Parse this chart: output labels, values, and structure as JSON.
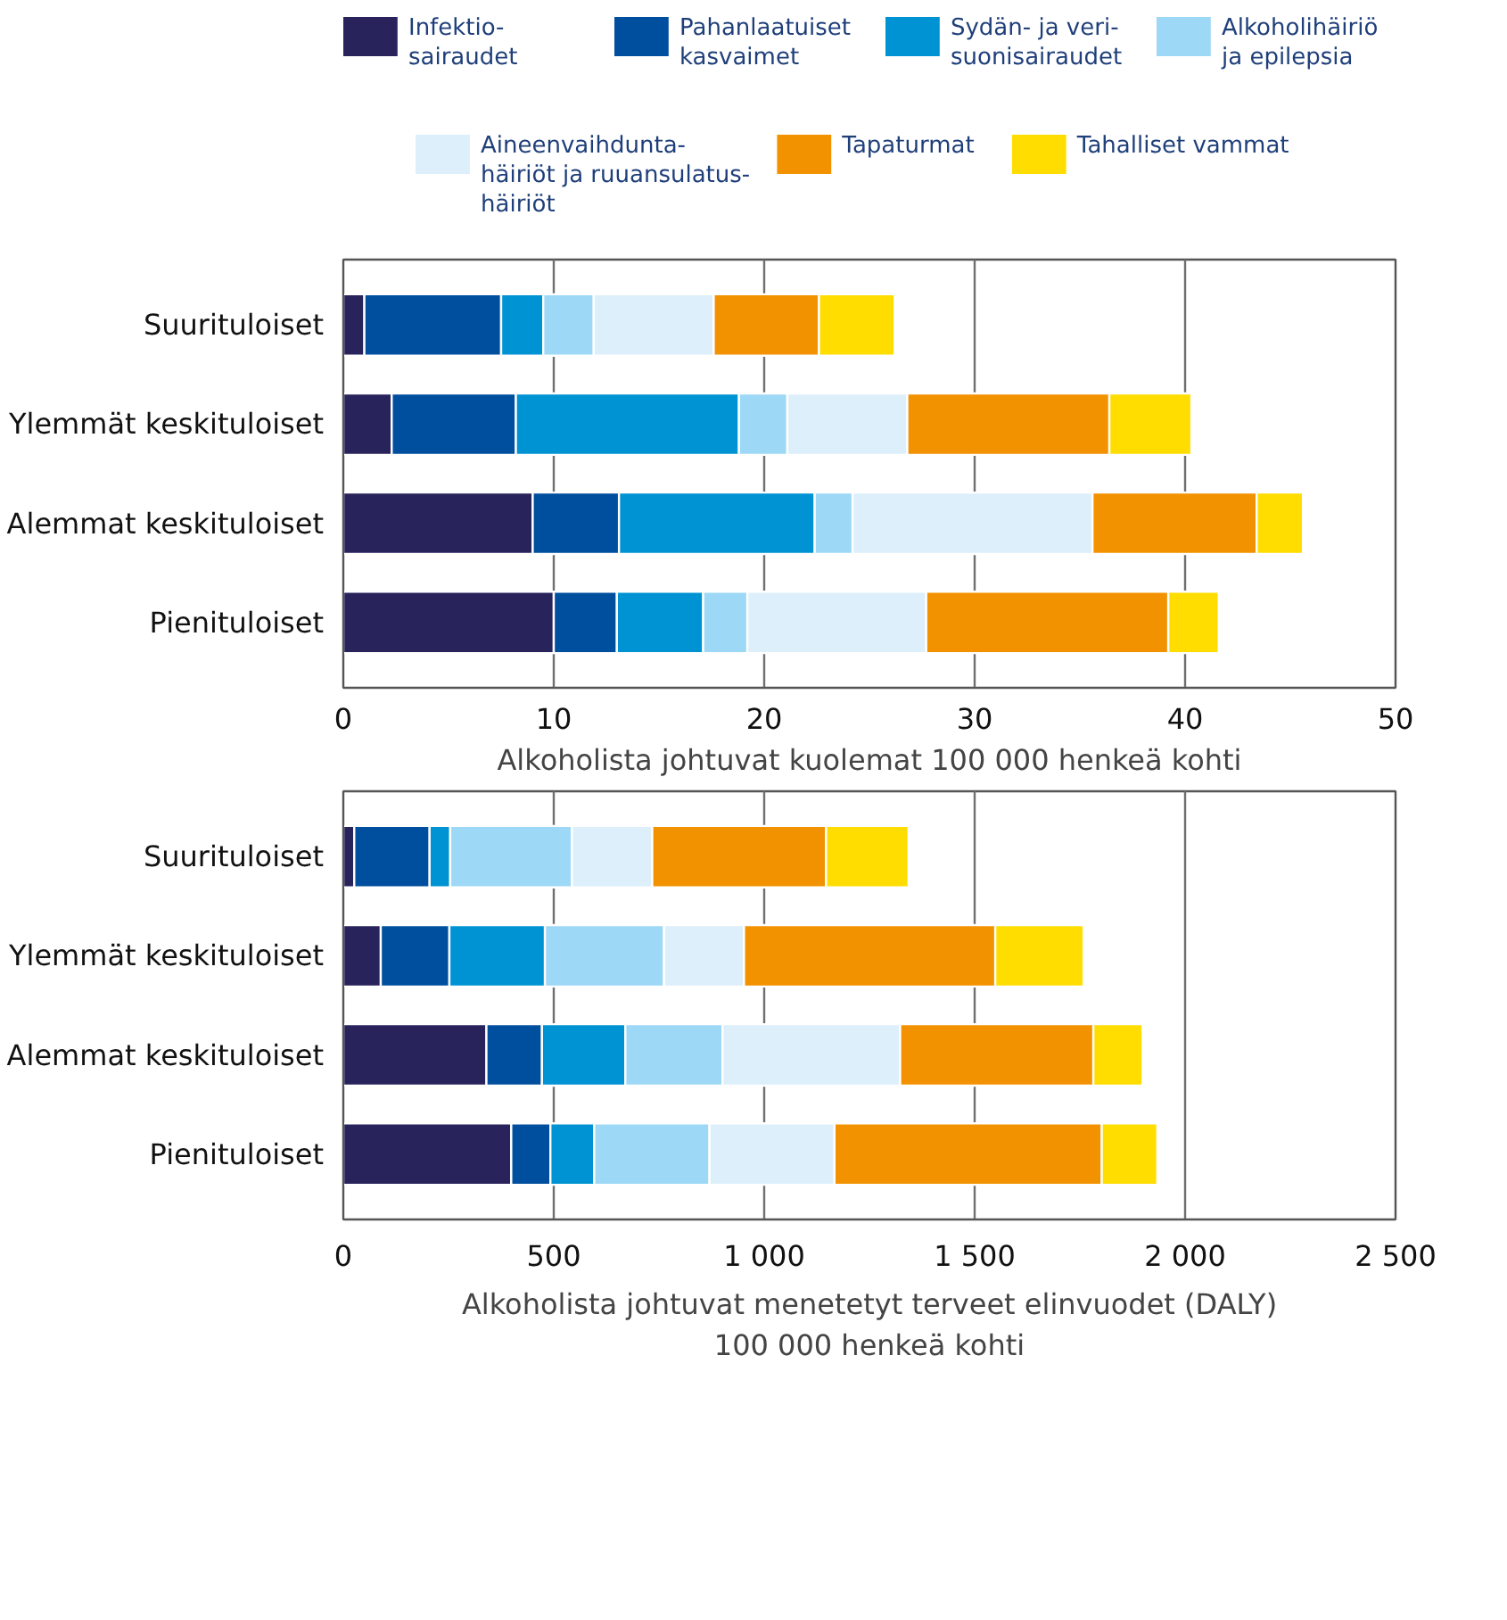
{
  "chart_data": [
    {
      "type": "bar",
      "orientation": "horizontal",
      "stacked": true,
      "xlabel": "Alkoholista johtuvat kuolemat 100 000 henkeä kohti",
      "categories": [
        "Suurituloiset",
        "Ylemmät keskituloiset",
        "Alemmat keskituloiset",
        "Pienituloiset"
      ],
      "xlim": [
        0,
        50
      ],
      "xticks": [
        0,
        10,
        20,
        30,
        40,
        50
      ],
      "grid": "x",
      "legend": "top",
      "series": [
        {
          "name": "Infektio-\nsairaudet",
          "color": "#29235c",
          "values": [
            1.0,
            2.3,
            9.0,
            10.0
          ]
        },
        {
          "name": "Pahanlaatuiset\nkasvaimet",
          "color": "#004f9f",
          "values": [
            6.5,
            5.9,
            4.1,
            3.0
          ]
        },
        {
          "name": "Sydän- ja veri-\nsuonisairaudet",
          "color": "#0093d3",
          "values": [
            2.0,
            10.6,
            9.3,
            4.1
          ]
        },
        {
          "name": "Alkoholihäiriö\nja epilepsia",
          "color": "#9dd8f7",
          "values": [
            2.4,
            2.3,
            1.8,
            2.1
          ]
        },
        {
          "name": "Aineenvaihdunta-\nhäiriöt ja ruuansulatus-\nhäiriöt",
          "color": "#ddeffa",
          "values": [
            5.7,
            5.7,
            11.4,
            8.5
          ]
        },
        {
          "name": "Tapaturmat",
          "color": "#f39200",
          "values": [
            5.0,
            9.6,
            7.8,
            11.5
          ]
        },
        {
          "name": "Tahalliset vammat",
          "color": "#ffdd00",
          "values": [
            3.6,
            3.9,
            2.2,
            2.4
          ]
        }
      ]
    },
    {
      "type": "bar",
      "orientation": "horizontal",
      "stacked": true,
      "xlabel": "Alkoholista johtuvat menetetyt terveet elinvuodet (DALY)\n100 000 henkeä kohti",
      "categories": [
        "Suurituloiset",
        "Ylemmät keskituloiset",
        "Alemmat keskituloiset",
        "Pienituloiset"
      ],
      "xlim": [
        0,
        2500
      ],
      "xticks": [
        0,
        500,
        {
          "value": 1000,
          "label": "1 000"
        },
        {
          "value": 1500,
          "label": "1 500"
        },
        {
          "value": 2000,
          "label": "2 000"
        },
        {
          "value": 2500,
          "label": "2 500"
        }
      ],
      "grid": "x",
      "series": [
        {
          "color": "#29235c",
          "values": [
            26,
            89,
            340,
            399
          ]
        },
        {
          "color": "#004f9f",
          "values": [
            179,
            163,
            132,
            93
          ]
        },
        {
          "color": "#0093d3",
          "values": [
            49,
            227,
            198,
            104
          ]
        },
        {
          "color": "#9dd8f7",
          "values": [
            289,
            283,
            231,
            274
          ]
        },
        {
          "color": "#ddeffa",
          "values": [
            191,
            190,
            422,
            297
          ]
        },
        {
          "color": "#f39200",
          "values": [
            413,
            597,
            459,
            635
          ]
        },
        {
          "color": "#ffdd00",
          "values": [
            196,
            210,
            117,
            132
          ]
        }
      ]
    }
  ]
}
